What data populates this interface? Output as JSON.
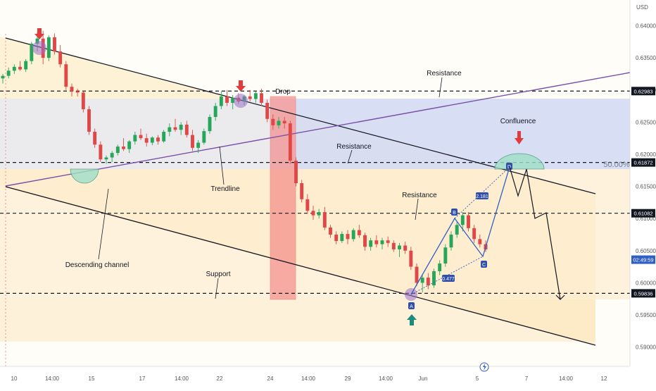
{
  "chart_data": {
    "type": "candlestick",
    "currency": "USD",
    "y_axis": {
      "range": [
        0.587,
        0.644
      ],
      "ticks": [
        "0.64000",
        "0.63500",
        "0.63000",
        "0.62500",
        "0.62000",
        "0.61500",
        "0.61000",
        "0.60500",
        "0.60000",
        "0.59500",
        "0.59000"
      ],
      "tick_values": [
        0.64,
        0.635,
        0.63,
        0.625,
        0.62,
        0.615,
        0.61,
        0.605,
        0.6,
        0.595,
        0.59
      ]
    },
    "x_axis": {
      "labels": [
        "10",
        "14:00",
        "15",
        "17",
        "14:00",
        "22",
        "24",
        "14:00",
        "29",
        "14:00",
        "Jun",
        "5",
        "7",
        "14:00",
        "12"
      ]
    },
    "levels": [
      {
        "name": "resistance-upper",
        "value": 0.62983,
        "label": "0.62983",
        "style": "dashed"
      },
      {
        "name": "resistance-mid",
        "value": 0.61872,
        "label": "0.61872",
        "style": "dashed"
      },
      {
        "name": "resistance-low",
        "value": 0.61082,
        "label": "0.61082",
        "style": "dashed"
      },
      {
        "name": "support",
        "value": 0.59836,
        "label": "0.59836",
        "style": "dashed"
      }
    ],
    "price_tag": {
      "value": 0.6036,
      "label": "02:49:59"
    },
    "fib_label": "50.00%",
    "annotations": {
      "drop": "Drop",
      "resistance_top": "Resistance",
      "resistance_mid": "Resistance",
      "resistance_low": "Resistance",
      "confluence": "Confluence",
      "trendline": "Trendline",
      "descending_channel": "Descending channel",
      "support": "Support"
    },
    "abcd": {
      "points": [
        "A",
        "B",
        "C",
        "D"
      ],
      "ratios": [
        "0.477",
        "2.181"
      ]
    },
    "candles": [
      [
        0.6318,
        0.6325,
        0.631,
        0.6322
      ],
      [
        0.6322,
        0.6335,
        0.6318,
        0.633
      ],
      [
        0.633,
        0.634,
        0.6325,
        0.6336
      ],
      [
        0.6336,
        0.6345,
        0.633,
        0.6332
      ],
      [
        0.6332,
        0.6348,
        0.6328,
        0.6345
      ],
      [
        0.6345,
        0.6375,
        0.634,
        0.6372
      ],
      [
        0.6372,
        0.639,
        0.636,
        0.638
      ],
      [
        0.638,
        0.6392,
        0.634,
        0.635
      ],
      [
        0.635,
        0.6385,
        0.6345,
        0.6382
      ],
      [
        0.6382,
        0.6388,
        0.6355,
        0.636
      ],
      [
        0.636,
        0.637,
        0.6335,
        0.634
      ],
      [
        0.634,
        0.6345,
        0.63,
        0.6305
      ],
      [
        0.6305,
        0.631,
        0.629,
        0.6298
      ],
      [
        0.6298,
        0.6302,
        0.629,
        0.6296
      ],
      [
        0.6296,
        0.6298,
        0.6265,
        0.627
      ],
      [
        0.627,
        0.6275,
        0.623,
        0.6235
      ],
      [
        0.6235,
        0.624,
        0.621,
        0.6215
      ],
      [
        0.6215,
        0.622,
        0.6188,
        0.6192
      ],
      [
        0.6192,
        0.6198,
        0.6185,
        0.6195
      ],
      [
        0.6195,
        0.6205,
        0.6188,
        0.6202
      ],
      [
        0.6202,
        0.6215,
        0.6198,
        0.6212
      ],
      [
        0.6212,
        0.6225,
        0.6205,
        0.6208
      ],
      [
        0.6208,
        0.6222,
        0.6202,
        0.622
      ],
      [
        0.622,
        0.6235,
        0.6215,
        0.623
      ],
      [
        0.623,
        0.624,
        0.6222,
        0.6225
      ],
      [
        0.6225,
        0.6232,
        0.6212,
        0.6218
      ],
      [
        0.6218,
        0.6228,
        0.6214,
        0.6226
      ],
      [
        0.6226,
        0.623,
        0.6215,
        0.622
      ],
      [
        0.622,
        0.6238,
        0.6218,
        0.6235
      ],
      [
        0.6235,
        0.6248,
        0.6228,
        0.6242
      ],
      [
        0.6242,
        0.6255,
        0.6235,
        0.6238
      ],
      [
        0.6238,
        0.625,
        0.623,
        0.6246
      ],
      [
        0.6246,
        0.6252,
        0.6226,
        0.623
      ],
      [
        0.623,
        0.6238,
        0.6205,
        0.621
      ],
      [
        0.621,
        0.6222,
        0.6202,
        0.6218
      ],
      [
        0.6218,
        0.624,
        0.6215,
        0.6236
      ],
      [
        0.6236,
        0.6262,
        0.6232,
        0.6258
      ],
      [
        0.6258,
        0.628,
        0.6252,
        0.6275
      ],
      [
        0.6275,
        0.6298,
        0.627,
        0.629
      ],
      [
        0.629,
        0.63,
        0.6275,
        0.628
      ],
      [
        0.628,
        0.6292,
        0.627,
        0.6288
      ],
      [
        0.6288,
        0.6295,
        0.6278,
        0.6282
      ],
      [
        0.6282,
        0.6292,
        0.6276,
        0.629
      ],
      [
        0.629,
        0.63,
        0.6282,
        0.6286
      ],
      [
        0.6286,
        0.6298,
        0.628,
        0.6295
      ],
      [
        0.6295,
        0.6302,
        0.6275,
        0.628
      ],
      [
        0.628,
        0.6285,
        0.625,
        0.6255
      ],
      [
        0.6255,
        0.6262,
        0.6238,
        0.6245
      ],
      [
        0.6245,
        0.6258,
        0.624,
        0.6252
      ],
      [
        0.6252,
        0.6258,
        0.624,
        0.6248
      ],
      [
        0.6248,
        0.6252,
        0.6185,
        0.619
      ],
      [
        0.619,
        0.6195,
        0.615,
        0.6155
      ],
      [
        0.6155,
        0.616,
        0.6125,
        0.613
      ],
      [
        0.613,
        0.6138,
        0.6108,
        0.6112
      ],
      [
        0.6112,
        0.612,
        0.6098,
        0.6105
      ],
      [
        0.6105,
        0.6115,
        0.61,
        0.611
      ],
      [
        0.611,
        0.6118,
        0.6082,
        0.6086
      ],
      [
        0.6086,
        0.609,
        0.607,
        0.6075
      ],
      [
        0.6075,
        0.608,
        0.606,
        0.6065
      ],
      [
        0.6065,
        0.608,
        0.6062,
        0.6076
      ],
      [
        0.6076,
        0.6082,
        0.606,
        0.6068
      ],
      [
        0.6068,
        0.6085,
        0.6064,
        0.6082
      ],
      [
        0.6082,
        0.609,
        0.607,
        0.6074
      ],
      [
        0.6074,
        0.6078,
        0.605,
        0.6056
      ],
      [
        0.6056,
        0.607,
        0.605,
        0.6066
      ],
      [
        0.6066,
        0.6074,
        0.6055,
        0.606
      ],
      [
        0.606,
        0.607,
        0.6052,
        0.6066
      ],
      [
        0.6066,
        0.6072,
        0.6056,
        0.6062
      ],
      [
        0.6062,
        0.6066,
        0.6048,
        0.6052
      ],
      [
        0.6052,
        0.6062,
        0.604,
        0.6058
      ],
      [
        0.6058,
        0.6064,
        0.6045,
        0.605
      ],
      [
        0.605,
        0.6056,
        0.602,
        0.6025
      ],
      [
        0.6025,
        0.603,
        0.5995,
        0.6
      ],
      [
        0.6,
        0.6012,
        0.5985,
        0.6008
      ],
      [
        0.6008,
        0.6015,
        0.599,
        0.5996
      ],
      [
        0.5996,
        0.6022,
        0.5992,
        0.6018
      ],
      [
        0.6018,
        0.6035,
        0.6012,
        0.603
      ],
      [
        0.603,
        0.606,
        0.6025,
        0.6055
      ],
      [
        0.6055,
        0.608,
        0.605,
        0.6075
      ],
      [
        0.6075,
        0.6095,
        0.607,
        0.609
      ],
      [
        0.609,
        0.611,
        0.608,
        0.6105
      ],
      [
        0.6105,
        0.611,
        0.608,
        0.6085
      ],
      [
        0.6085,
        0.609,
        0.6062,
        0.6068
      ],
      [
        0.6068,
        0.6075,
        0.6055,
        0.606
      ],
      [
        0.606,
        0.6066,
        0.6048,
        0.6052
      ]
    ]
  }
}
